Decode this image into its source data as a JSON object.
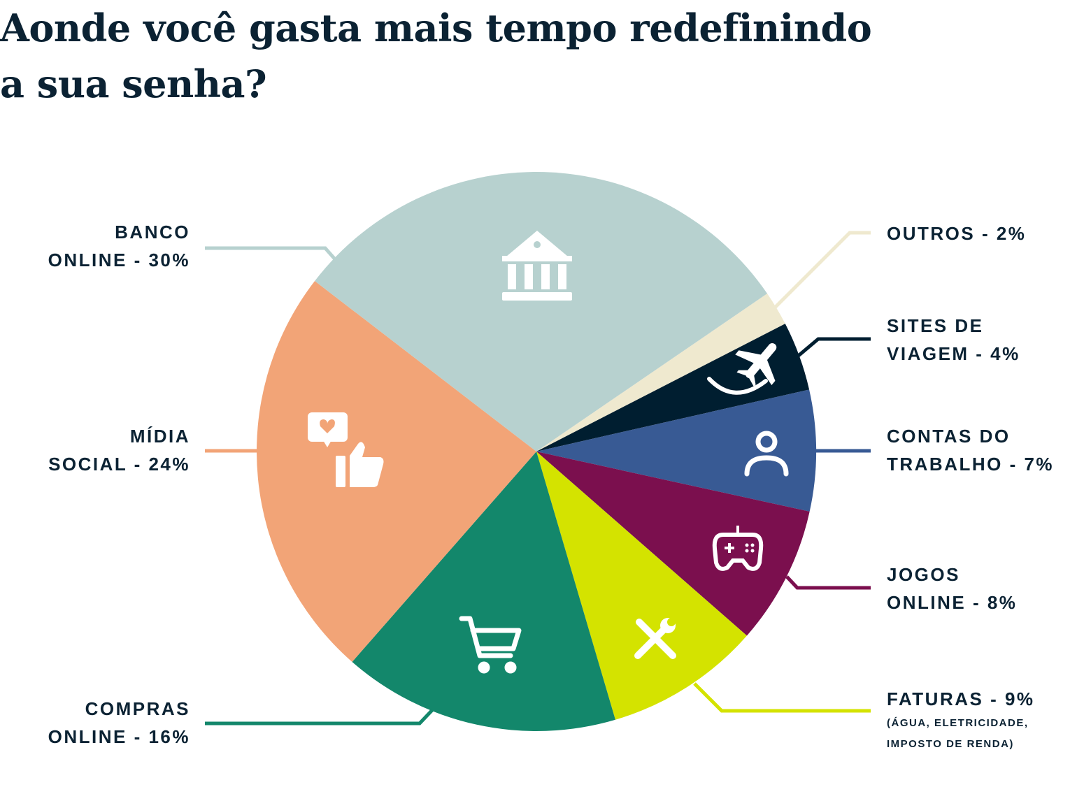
{
  "title": [
    "Aonde você gasta mais tempo redefinindo",
    "a sua senha?"
  ],
  "chart_data": {
    "type": "pie",
    "title": "Aonde você gasta mais tempo redefinindo a sua senha?",
    "slices": [
      {
        "key": "outros",
        "label": [
          "OUTROS - 2%"
        ],
        "value": 2,
        "color": "#efe9cf",
        "icon": "none"
      },
      {
        "key": "viagem",
        "label": [
          "SITES DE",
          "VIAGEM - 4%"
        ],
        "value": 4,
        "color": "#001e30",
        "icon": "airplane-icon"
      },
      {
        "key": "contas",
        "label": [
          "CONTAS DO",
          "TRABALHO - 7%"
        ],
        "value": 7,
        "color": "#385a94",
        "icon": "user-icon"
      },
      {
        "key": "jogos",
        "label": [
          "JOGOS",
          "ONLINE - 8%"
        ],
        "value": 8,
        "color": "#7b0f4e",
        "icon": "gamepad-icon"
      },
      {
        "key": "faturas",
        "label": [
          "FATURAS - 9%"
        ],
        "sublabel": [
          "(ÁGUA, ELETRICIDADE,",
          "IMPOSTO DE RENDA)"
        ],
        "value": 9,
        "color": "#d4e300",
        "icon": "tools-icon"
      },
      {
        "key": "compras",
        "label": [
          "COMPRAS",
          "ONLINE - 16%"
        ],
        "value": 16,
        "color": "#13876b",
        "icon": "cart-icon"
      },
      {
        "key": "midia",
        "label": [
          "MÍDIA",
          "SOCIAL - 24%"
        ],
        "value": 24,
        "color": "#f2a477",
        "icon": "social-like-icon"
      },
      {
        "key": "banco",
        "label": [
          "BANCO",
          "ONLINE - 30%"
        ],
        "value": 30,
        "color": "#b7d1cf",
        "icon": "bank-icon"
      }
    ],
    "direction": "clockwise",
    "legend": "callout labels around pie"
  }
}
